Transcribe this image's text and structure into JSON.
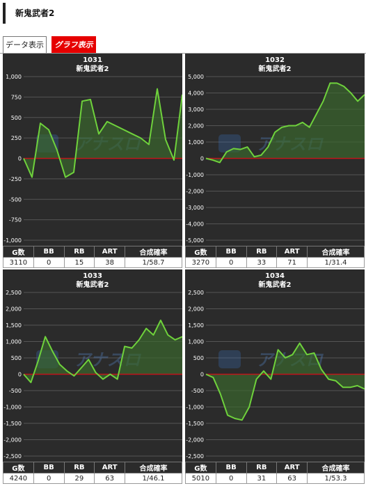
{
  "page": {
    "title": "新鬼武者2"
  },
  "tabs": [
    {
      "label": "データ表示",
      "active": false
    },
    {
      "label": "グラフ表示",
      "active": true
    }
  ],
  "theme": {
    "line": "#6fd23c",
    "fill": "#3b6a2d",
    "zero": "#c0151b",
    "panel_bg": "#2b2b2b",
    "grid": "#555555"
  },
  "watermark": {
    "logo": "アナスロ"
  },
  "stat_headers": [
    "G数",
    "BB",
    "RB",
    "ART",
    "合成確率"
  ],
  "machines": [
    {
      "number": "1031",
      "name": "新鬼武者2",
      "stats": [
        "3110",
        "0",
        "15",
        "38",
        "1/58.7"
      ],
      "y_ticks": [
        "1,000",
        "750",
        "500",
        "250",
        "0",
        "-250",
        "-500",
        "-750",
        "-1,000"
      ]
    },
    {
      "number": "1032",
      "name": "新鬼武者2",
      "stats": [
        "3270",
        "0",
        "33",
        "71",
        "1/31.4"
      ],
      "y_ticks": [
        "5,000",
        "4,000",
        "3,000",
        "2,000",
        "1,000",
        "0",
        "-1,000",
        "-2,000",
        "-3,000",
        "-4,000",
        "-5,000"
      ]
    },
    {
      "number": "1033",
      "name": "新鬼武者2",
      "stats": [
        "4240",
        "0",
        "29",
        "63",
        "1/46.1"
      ],
      "y_ticks": [
        "2,500",
        "2,000",
        "1,500",
        "1,000",
        "500",
        "0",
        "-500",
        "-1,000",
        "-1,500",
        "-2,000",
        "-2,500"
      ]
    },
    {
      "number": "1034",
      "name": "新鬼武者2",
      "stats": [
        "5010",
        "0",
        "31",
        "63",
        "1/53.3"
      ],
      "y_ticks": [
        "2,500",
        "2,000",
        "1,500",
        "1,000",
        "500",
        "0",
        "-500",
        "-1,000",
        "-1,500",
        "-2,000",
        "-2,500"
      ]
    }
  ],
  "chart_data": [
    {
      "type": "area",
      "ylim": [
        -1000,
        1000
      ],
      "series": [
        {
          "values": [
            0,
            -230,
            430,
            350,
            100,
            -230,
            -170,
            700,
            720,
            300,
            450,
            400,
            350,
            300,
            250,
            170,
            850,
            230,
            -20,
            780
          ]
        }
      ]
    },
    {
      "type": "area",
      "ylim": [
        -5000,
        5000
      ],
      "series": [
        {
          "values": [
            0,
            -100,
            -250,
            400,
            600,
            550,
            700,
            100,
            200,
            700,
            1600,
            1900,
            2000,
            2000,
            2200,
            1900,
            2700,
            3500,
            4600,
            4600,
            4400,
            4000,
            3500,
            3900
          ]
        }
      ]
    },
    {
      "type": "area",
      "ylim": [
        -2500,
        2500
      ],
      "series": [
        {
          "values": [
            0,
            -250,
            400,
            1150,
            700,
            300,
            100,
            -50,
            200,
            450,
            50,
            -150,
            0,
            -150,
            850,
            800,
            1050,
            1400,
            1200,
            1650,
            1200,
            1050,
            1150
          ]
        }
      ]
    },
    {
      "type": "area",
      "ylim": [
        -2500,
        2500
      ],
      "series": [
        {
          "values": [
            0,
            -100,
            -600,
            -1250,
            -1350,
            -1400,
            -1000,
            -150,
            100,
            -150,
            750,
            500,
            600,
            950,
            600,
            650,
            150,
            -150,
            -200,
            -400,
            -400,
            -350,
            -450
          ]
        }
      ]
    }
  ]
}
